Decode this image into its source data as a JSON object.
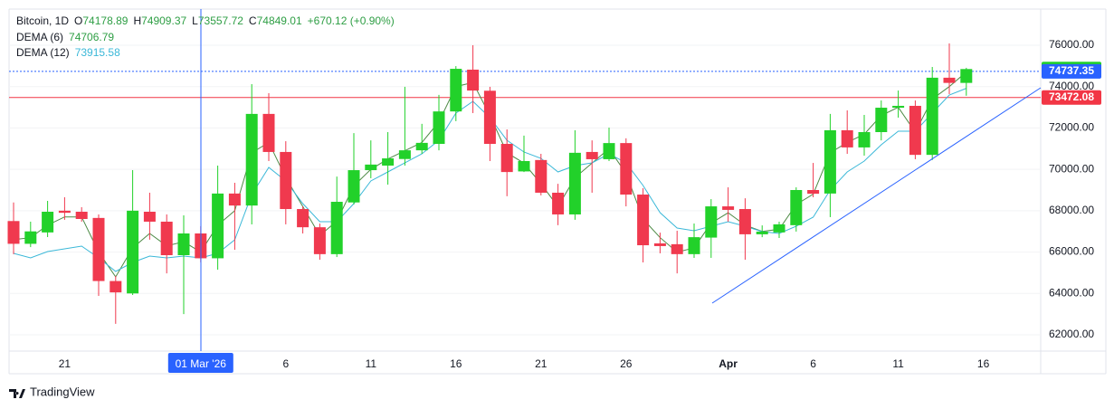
{
  "chart_data": {
    "type": "candlestick",
    "title": "Bitcoin, 1D",
    "ohlc_labels": [
      "O",
      "H",
      "L",
      "C"
    ],
    "change": "+670.12 (+0.90%)",
    "up_color": "#22d12a",
    "down_color": "#f0394e",
    "categories": [
      null,
      null,
      null,
      "21",
      null,
      null,
      null,
      null,
      null,
      null,
      null,
      "01 Mar '26",
      null,
      null,
      null,
      null,
      "6",
      null,
      null,
      null,
      null,
      "11",
      null,
      null,
      null,
      null,
      "16",
      null,
      null,
      null,
      null,
      "21",
      null,
      null,
      null,
      null,
      "26",
      null,
      null,
      null,
      null,
      null,
      "Apr",
      null,
      null,
      null,
      null,
      "6",
      null,
      null,
      null,
      null,
      "11",
      null,
      null,
      null,
      null,
      "16"
    ],
    "open": [
      67500,
      66400,
      66950,
      68000,
      67950,
      67650,
      64600,
      64000,
      67950,
      67470,
      65850,
      66900,
      65700,
      68830,
      68250,
      72680,
      70840,
      68080,
      67200,
      65900,
      68400,
      69960,
      70180,
      70500,
      70920,
      71230,
      72800,
      74820,
      73800,
      71230,
      69900,
      70450,
      68870,
      67820,
      70840,
      70490,
      71270,
      68780,
      66420,
      66380,
      65900,
      66700,
      68210,
      68080,
      66860,
      66950,
      67300,
      69000,
      68830,
      71890,
      71060,
      71800,
      72980,
      73070,
      70700,
      74430,
      74178.89,
      null
    ],
    "high": [
      68400,
      67470,
      68475,
      68650,
      68170,
      67820,
      64850,
      69960,
      68870,
      67820,
      67775,
      67250,
      70180,
      69350,
      74120,
      73680,
      71360,
      68210,
      67380,
      69650,
      71750,
      71400,
      71800,
      73990,
      72200,
      73600,
      74990,
      76000,
      73990,
      71930,
      71630,
      70750,
      69300,
      71890,
      71400,
      72020,
      71500,
      69090,
      66940,
      67030,
      67380,
      68560,
      69130,
      68600,
      67290,
      67470,
      69130,
      70310,
      72680,
      72850,
      72630,
      73330,
      73810,
      73330,
      74950,
      76090,
      74909.37,
      null
    ],
    "low": [
      65900,
      66240,
      66725,
      67560,
      67470,
      63880,
      62530,
      63925,
      66600,
      64970,
      63000,
      65500,
      65150,
      66110,
      67340,
      70400,
      67340,
      66900,
      65630,
      65760,
      68300,
      69570,
      69260,
      70180,
      70750,
      70920,
      72330,
      72720,
      70400,
      68700,
      69870,
      68740,
      67300,
      67560,
      68870,
      70400,
      68210,
      65500,
      65940,
      64970,
      65720,
      65720,
      67470,
      65630,
      66720,
      66680,
      66990,
      68650,
      67690,
      70750,
      70660,
      71400,
      72500,
      70490,
      70450,
      73640,
      73557.72,
      null
    ],
    "close": [
      66400,
      67000,
      67950,
      67900,
      67600,
      64600,
      64050,
      68000,
      67470,
      65850,
      66900,
      65700,
      68830,
      68250,
      72680,
      70840,
      68080,
      67200,
      65900,
      68430,
      69960,
      70230,
      70530,
      70920,
      71280,
      72800,
      74860,
      73810,
      71230,
      69870,
      70400,
      68870,
      67820,
      70800,
      70490,
      71270,
      68780,
      66330,
      66290,
      65900,
      66720,
      68210,
      68040,
      66860,
      66990,
      67340,
      69000,
      68820,
      71890,
      71060,
      71800,
      72980,
      73070,
      70700,
      74430,
      74178.89,
      74849.01,
      null
    ],
    "series": [
      {
        "name": "DEMA (6)",
        "color": "#4d8a45",
        "values": [
          66600,
          66700,
          67300,
          67700,
          67700,
          66000,
          64800,
          66200,
          66900,
          66300,
          66500,
          66000,
          67300,
          68000,
          70800,
          71300,
          69600,
          68200,
          66800,
          67500,
          69200,
          70000,
          70500,
          70900,
          71300,
          72300,
          74000,
          74200,
          72600,
          70800,
          70300,
          69300,
          68200,
          69600,
          70300,
          71000,
          69800,
          67600,
          66700,
          66000,
          66200,
          67400,
          67900,
          67300,
          67000,
          67100,
          68300,
          68800,
          70800,
          71300,
          71700,
          72600,
          73000,
          71800,
          73400,
          74000,
          74706.79,
          null
        ]
      },
      {
        "name": "DEMA (12)",
        "color": "#3bb8d8",
        "values": [
          65937,
          65719,
          66025,
          66156,
          66287,
          65719,
          65063,
          65500,
          65806,
          65719,
          65806,
          65719,
          65937,
          66594,
          68781,
          70094,
          69438,
          68344,
          67469,
          67469,
          68344,
          69438,
          69875,
          70313,
          70750,
          71406,
          72719,
          73288,
          72500,
          71406,
          70838,
          70531,
          69875,
          70181,
          70313,
          70750,
          70313,
          69219,
          67906,
          67163,
          67031,
          67250,
          67469,
          67250,
          66988,
          66900,
          67250,
          67688,
          69000,
          69875,
          70400,
          71188,
          71844,
          71844,
          72719,
          73594,
          73915.58,
          null
        ]
      }
    ],
    "price_lines": [
      {
        "value": 74737.35,
        "color": "#2962ff"
      },
      {
        "value": 73472.08,
        "color": "#f23645"
      }
    ],
    "ylim": [
      61212.5,
      77750
    ],
    "yticks": [
      {
        "value": 62000,
        "label": "62000.00"
      },
      {
        "value": 64000,
        "label": "64000.00"
      },
      {
        "value": 66000,
        "label": "66000.00"
      },
      {
        "value": 68000,
        "label": "68000.00"
      },
      {
        "value": 70000,
        "label": "70000.00"
      },
      {
        "value": 72000,
        "label": "72000.00"
      },
      {
        "value": 74000,
        "label": "74000.00"
      },
      {
        "value": 76000,
        "label": "76000.00"
      }
    ],
    "grid": true,
    "logo": "TradingView"
  }
}
